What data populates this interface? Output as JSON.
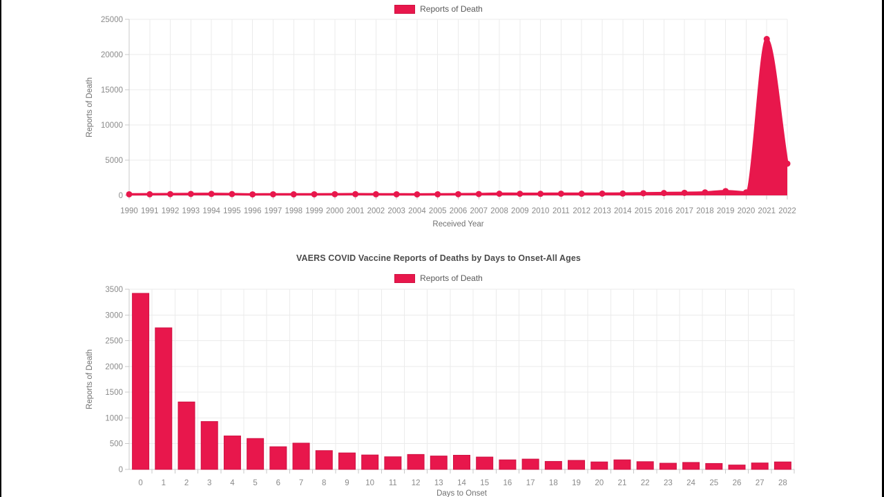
{
  "page": {
    "background": "#ffffff",
    "edge_bar_color": "#000000",
    "accent_color": "#e8174c"
  },
  "chart_data": [
    {
      "type": "area",
      "title": "",
      "legend_position": "top",
      "xlabel": "Received Year",
      "ylabel": "Reports of Death",
      "x": [
        1990,
        1991,
        1992,
        1993,
        1994,
        1995,
        1996,
        1997,
        1998,
        1999,
        2000,
        2001,
        2002,
        2003,
        2004,
        2005,
        2006,
        2007,
        2008,
        2009,
        2010,
        2011,
        2012,
        2013,
        2014,
        2015,
        2016,
        2017,
        2018,
        2019,
        2020,
        2021,
        2022
      ],
      "series": [
        {
          "name": "Reports of Death",
          "values": [
            150,
            155,
            175,
            200,
            205,
            180,
            140,
            150,
            145,
            150,
            160,
            170,
            155,
            150,
            135,
            150,
            165,
            185,
            230,
            225,
            220,
            235,
            230,
            245,
            255,
            300,
            330,
            360,
            420,
            605,
            420,
            22200,
            4500
          ]
        }
      ],
      "ylim": [
        0,
        25000
      ],
      "ytick_step": 5000,
      "grid": true,
      "color": "#e8174c"
    },
    {
      "type": "bar",
      "title": "VAERS COVID Vaccine Reports of Deaths by Days to Onset-All Ages",
      "legend_position": "top",
      "xlabel": "Days to Onset",
      "ylabel": "Reports of Death",
      "categories": [
        "0",
        "1",
        "2",
        "3",
        "4",
        "5",
        "6",
        "7",
        "8",
        "9",
        "10",
        "11",
        "12",
        "13",
        "14",
        "15",
        "16",
        "17",
        "18",
        "19",
        "20",
        "21",
        "22",
        "23",
        "24",
        "25",
        "26",
        "27",
        "28"
      ],
      "series": [
        {
          "name": "Reports of Death",
          "values": [
            3420,
            2750,
            1310,
            930,
            650,
            600,
            440,
            510,
            365,
            320,
            280,
            245,
            290,
            260,
            275,
            240,
            185,
            200,
            155,
            175,
            145,
            185,
            150,
            120,
            135,
            115,
            85,
            125,
            145
          ]
        }
      ],
      "ylim": [
        0,
        3500
      ],
      "ytick_step": 500,
      "grid": true,
      "color": "#e8174c"
    }
  ]
}
